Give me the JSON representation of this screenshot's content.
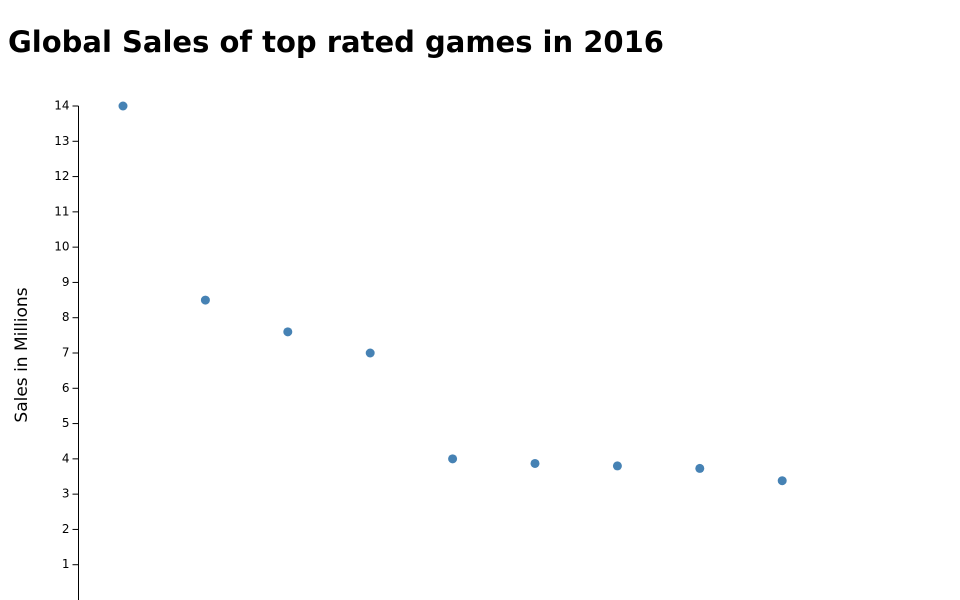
{
  "chart_data": {
    "type": "dot",
    "title": "Global Sales of top rated games in 2016",
    "y_label": "Sales in Millions",
    "categories": [
      null,
      null,
      null,
      null,
      null,
      null,
      null,
      null,
      null
    ],
    "values": [
      14.0,
      8.5,
      7.6,
      7.0,
      4.0,
      3.87,
      3.8,
      3.73,
      3.38
    ],
    "color": "#4682b4",
    "ylim": [
      0,
      14
    ],
    "yticks": [
      1,
      2,
      3,
      4,
      5,
      6,
      7,
      8,
      9,
      10,
      11,
      12,
      13,
      14
    ],
    "grid": false
  }
}
